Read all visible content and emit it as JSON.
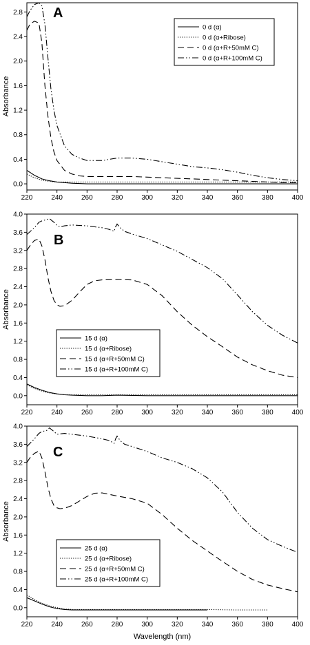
{
  "chart_data": [
    {
      "type": "line",
      "panel": "A",
      "title": "",
      "xlabel": "",
      "ylabel": "Absorbance",
      "xlim": [
        220,
        400
      ],
      "ylim": [
        -0.1,
        2.95
      ],
      "xticks": [
        "220",
        "240",
        "260",
        "280",
        "300",
        "320",
        "340",
        "360",
        "380",
        "400"
      ],
      "yticks": [
        "0.0",
        "0.4",
        "0.8",
        "1.2",
        "1.6",
        "2.0",
        "2.4",
        "2.8"
      ],
      "ytick_values": [
        0,
        0.4,
        0.8,
        1.2,
        1.6,
        2.0,
        2.4,
        2.8
      ],
      "grid": false,
      "legend_position": "top-right",
      "series": [
        {
          "name": "0 d (α)",
          "dash": "solid",
          "x": [
            220,
            225,
            230,
            235,
            240,
            245,
            250,
            260,
            280,
            300,
            320,
            340,
            360,
            380,
            400
          ],
          "y": [
            0.22,
            0.14,
            0.08,
            0.05,
            0.03,
            0.02,
            0.01,
            0.0,
            0.0,
            0.0,
            0.0,
            0.0,
            0.0,
            0.0,
            0.0
          ]
        },
        {
          "name": "0 d (α+Ribose)",
          "dash": "dotted",
          "x": [
            220,
            225,
            230,
            235,
            240,
            245,
            250,
            260,
            280,
            300,
            320,
            340,
            360,
            380,
            400
          ],
          "y": [
            0.16,
            0.1,
            0.06,
            0.04,
            0.03,
            0.03,
            0.03,
            0.03,
            0.03,
            0.03,
            0.03,
            0.03,
            0.03,
            0.03,
            0.03
          ]
        },
        {
          "name": "0 d (α+R+50mM C)",
          "dash": "dashed",
          "x": [
            220,
            222,
            225,
            228,
            230,
            232,
            234,
            236,
            238,
            240,
            245,
            250,
            255,
            260,
            270,
            280,
            290,
            300,
            310,
            320,
            330,
            340,
            350,
            360,
            370,
            380,
            390,
            400
          ],
          "y": [
            2.5,
            2.6,
            2.65,
            2.62,
            2.3,
            1.6,
            1.1,
            0.75,
            0.52,
            0.38,
            0.22,
            0.16,
            0.13,
            0.12,
            0.12,
            0.12,
            0.12,
            0.11,
            0.1,
            0.09,
            0.08,
            0.07,
            0.06,
            0.05,
            0.04,
            0.03,
            0.02,
            0.02
          ]
        },
        {
          "name": "0 d (α+R+100mM C)",
          "dash": "dashdotdot",
          "x": [
            220,
            222,
            225,
            228,
            230,
            232,
            234,
            236,
            238,
            240,
            245,
            250,
            255,
            260,
            270,
            280,
            290,
            300,
            310,
            320,
            330,
            340,
            350,
            360,
            370,
            380,
            390,
            400
          ],
          "y": [
            2.72,
            2.82,
            2.92,
            2.95,
            2.9,
            2.6,
            2.05,
            1.55,
            1.2,
            0.95,
            0.62,
            0.48,
            0.42,
            0.38,
            0.38,
            0.42,
            0.42,
            0.4,
            0.36,
            0.32,
            0.28,
            0.26,
            0.23,
            0.19,
            0.14,
            0.1,
            0.07,
            0.05
          ]
        }
      ],
      "annotations": [
        "A"
      ]
    },
    {
      "type": "line",
      "panel": "B",
      "title": "",
      "xlabel": "",
      "ylabel": "Absorbance",
      "xlim": [
        220,
        400
      ],
      "ylim": [
        -0.2,
        4.0
      ],
      "xticks": [
        "220",
        "240",
        "260",
        "280",
        "300",
        "320",
        "340",
        "360",
        "380",
        "400"
      ],
      "yticks": [
        "0.0",
        "0.4",
        "0.8",
        "1.2",
        "1.6",
        "2.0",
        "2.4",
        "2.8",
        "3.2",
        "3.6",
        "4.0"
      ],
      "ytick_values": [
        0,
        0.4,
        0.8,
        1.2,
        1.6,
        2.0,
        2.4,
        2.8,
        3.2,
        3.6,
        4.0
      ],
      "grid": false,
      "legend_position": "bottom-left",
      "series": [
        {
          "name": "15 d (α)",
          "dash": "solid",
          "x": [
            220,
            225,
            230,
            235,
            240,
            245,
            250,
            260,
            270,
            280,
            300,
            320,
            340,
            360,
            380,
            400
          ],
          "y": [
            0.26,
            0.18,
            0.12,
            0.07,
            0.04,
            0.02,
            0.01,
            0.0,
            0.0,
            0.01,
            0.0,
            0.0,
            0.0,
            0.0,
            0.0,
            0.0
          ]
        },
        {
          "name": "15 d (α+Ribose)",
          "dash": "dotted",
          "x": [
            220,
            225,
            230,
            235,
            240,
            245,
            250,
            260,
            280,
            300,
            320,
            340,
            360,
            380,
            400
          ],
          "y": [
            0.24,
            0.16,
            0.1,
            0.06,
            0.04,
            0.02,
            0.02,
            0.02,
            0.02,
            0.02,
            0.02,
            0.02,
            0.02,
            0.02,
            0.02
          ]
        },
        {
          "name": "15 d (α+R+50mM C)",
          "dash": "dashed",
          "x": [
            220,
            222,
            225,
            228,
            230,
            232,
            234,
            236,
            238,
            240,
            242,
            245,
            250,
            255,
            260,
            265,
            270,
            280,
            290,
            300,
            310,
            320,
            330,
            340,
            350,
            360,
            370,
            380,
            390,
            400
          ],
          "y": [
            3.2,
            3.3,
            3.42,
            3.45,
            3.3,
            3.0,
            2.6,
            2.3,
            2.1,
            2.0,
            1.97,
            1.98,
            2.1,
            2.28,
            2.45,
            2.53,
            2.55,
            2.56,
            2.55,
            2.45,
            2.2,
            1.85,
            1.55,
            1.3,
            1.08,
            0.85,
            0.68,
            0.55,
            0.45,
            0.4
          ]
        },
        {
          "name": "15 d (α+R+100mM C)",
          "dash": "dashdotdot",
          "x": [
            220,
            225,
            228,
            230,
            232,
            235,
            238,
            240,
            242,
            245,
            250,
            255,
            260,
            265,
            270,
            275,
            278,
            279,
            280,
            282,
            285,
            290,
            300,
            310,
            320,
            330,
            340,
            350,
            360,
            370,
            380,
            390,
            400
          ],
          "y": [
            3.55,
            3.7,
            3.82,
            3.85,
            3.87,
            3.9,
            3.82,
            3.75,
            3.72,
            3.74,
            3.76,
            3.75,
            3.74,
            3.72,
            3.7,
            3.66,
            3.62,
            3.72,
            3.78,
            3.7,
            3.62,
            3.56,
            3.46,
            3.32,
            3.18,
            3.0,
            2.82,
            2.58,
            2.22,
            1.85,
            1.55,
            1.33,
            1.16
          ]
        }
      ],
      "annotations": [
        "B"
      ]
    },
    {
      "type": "line",
      "panel": "C",
      "title": "",
      "xlabel": "Wavelength (nm)",
      "ylabel": "Absorbance",
      "xlim": [
        220,
        400
      ],
      "ylim": [
        -0.2,
        4.0
      ],
      "xticks": [
        "220",
        "240",
        "260",
        "280",
        "300",
        "320",
        "340",
        "360",
        "380",
        "400"
      ],
      "yticks": [
        "0.0",
        "0.4",
        "0.8",
        "1.2",
        "1.6",
        "2.0",
        "2.4",
        "2.8",
        "3.2",
        "3.6",
        "4.0"
      ],
      "ytick_values": [
        0,
        0.4,
        0.8,
        1.2,
        1.6,
        2.0,
        2.4,
        2.8,
        3.2,
        3.6,
        4.0
      ],
      "grid": false,
      "legend_position": "bottom-left",
      "series": [
        {
          "name": "25 d (α)",
          "dash": "solid",
          "x": [
            220,
            225,
            230,
            235,
            240,
            245,
            250,
            255,
            260,
            280,
            300,
            320,
            340
          ],
          "y": [
            0.22,
            0.15,
            0.08,
            0.02,
            -0.02,
            -0.04,
            -0.05,
            -0.05,
            -0.05,
            -0.05,
            -0.05,
            -0.05,
            -0.05
          ]
        },
        {
          "name": "25 d (α+Ribose)",
          "dash": "dotted",
          "x": [
            220,
            225,
            230,
            235,
            240,
            245,
            250,
            260,
            280,
            300,
            320,
            340,
            360,
            380
          ],
          "y": [
            0.28,
            0.18,
            0.1,
            0.04,
            0.0,
            -0.03,
            -0.04,
            -0.04,
            -0.04,
            -0.04,
            -0.04,
            -0.04,
            -0.05,
            -0.05
          ]
        },
        {
          "name": "25 d (α+R+50mM C)",
          "dash": "dashed",
          "x": [
            220,
            222,
            225,
            228,
            230,
            232,
            234,
            236,
            238,
            240,
            242,
            245,
            250,
            255,
            260,
            265,
            270,
            280,
            290,
            300,
            310,
            320,
            330,
            340,
            350,
            360,
            370,
            380,
            390,
            400
          ],
          "y": [
            3.2,
            3.3,
            3.4,
            3.45,
            3.3,
            3.0,
            2.65,
            2.4,
            2.25,
            2.2,
            2.18,
            2.19,
            2.25,
            2.35,
            2.45,
            2.52,
            2.53,
            2.46,
            2.4,
            2.3,
            2.05,
            1.75,
            1.48,
            1.25,
            1.02,
            0.8,
            0.62,
            0.5,
            0.42,
            0.35
          ]
        },
        {
          "name": "25 d (α+R+100mM C)",
          "dash": "dashdotdot",
          "x": [
            220,
            225,
            228,
            230,
            233,
            235,
            238,
            240,
            245,
            250,
            255,
            260,
            265,
            270,
            275,
            278,
            279,
            280,
            282,
            285,
            290,
            300,
            310,
            320,
            330,
            340,
            350,
            360,
            370,
            380,
            390,
            400
          ],
          "y": [
            3.55,
            3.72,
            3.84,
            3.88,
            3.9,
            3.96,
            3.88,
            3.82,
            3.84,
            3.82,
            3.8,
            3.78,
            3.75,
            3.72,
            3.68,
            3.62,
            3.72,
            3.78,
            3.68,
            3.6,
            3.55,
            3.44,
            3.3,
            3.2,
            3.06,
            2.86,
            2.55,
            2.1,
            1.75,
            1.5,
            1.35,
            1.22
          ]
        }
      ],
      "annotations": [
        "C"
      ]
    }
  ],
  "colors": {
    "line": "#000000",
    "background": "#ffffff",
    "axis": "#000000"
  }
}
